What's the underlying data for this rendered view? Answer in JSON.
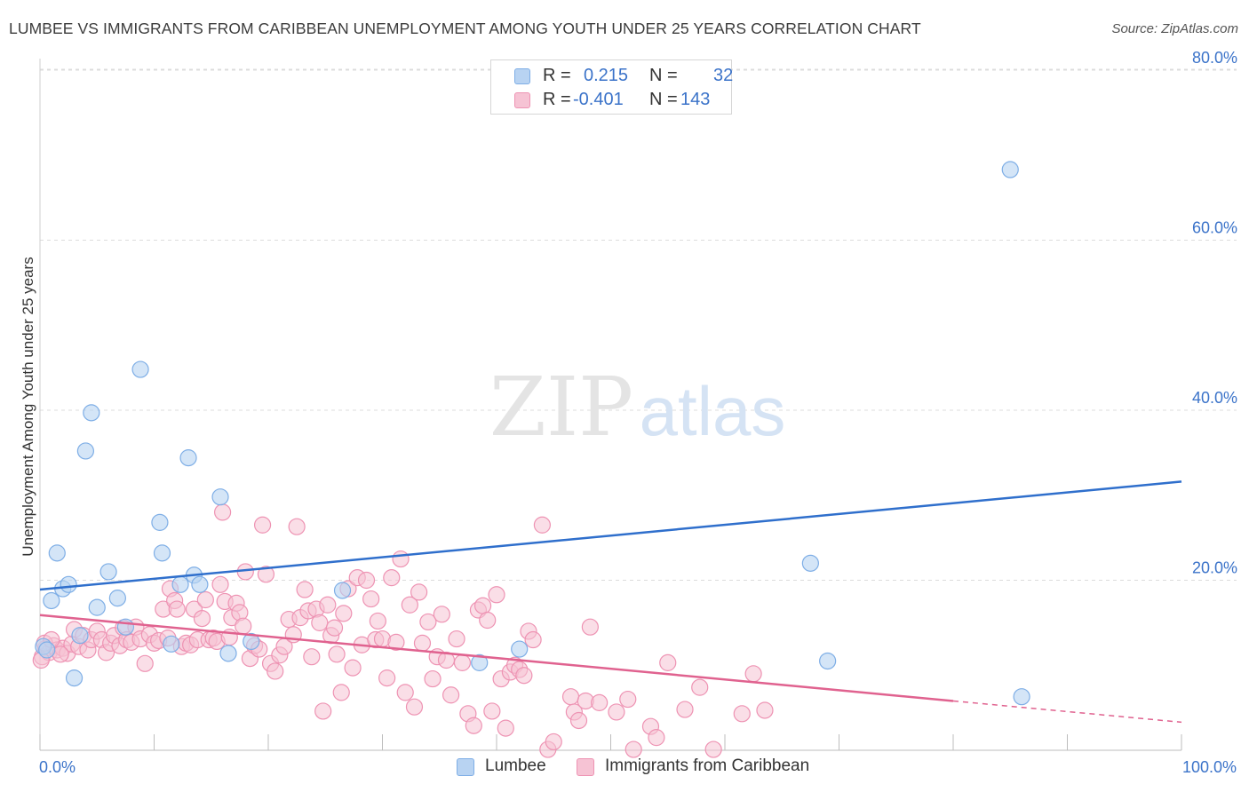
{
  "title": "LUMBEE VS IMMIGRANTS FROM CARIBBEAN UNEMPLOYMENT AMONG YOUTH UNDER 25 YEARS CORRELATION CHART",
  "source": "Source: ZipAtlas.com",
  "watermark": {
    "zip": "ZIP",
    "atlas": "atlas"
  },
  "legend_top": {
    "rows": [
      {
        "r_label": "R =",
        "r_value": "0.215",
        "n_label": "N =",
        "n_value": "32"
      },
      {
        "r_label": "R =",
        "r_value": "-0.401",
        "n_label": "N =",
        "n_value": "143"
      }
    ]
  },
  "colors": {
    "lumbee_fill": "#b8d3f2",
    "lumbee_stroke": "#7eaee6",
    "lumbee_line": "#2f6fcc",
    "carib_fill": "#f6c3d4",
    "carib_stroke": "#ee93b3",
    "carib_line": "#e0628f",
    "tick_label": "#3b73c9",
    "grid": "#dcdcdc"
  },
  "chart_data": {
    "type": "scatter",
    "title": "LUMBEE VS IMMIGRANTS FROM CARIBBEAN UNEMPLOYMENT AMONG YOUTH UNDER 25 YEARS CORRELATION CHART",
    "xlabel": "",
    "ylabel": "Unemployment Among Youth under 25 years",
    "xlim": [
      0,
      100
    ],
    "ylim": [
      0,
      80
    ],
    "x_tick_labels": [
      "0.0%",
      "100.0%"
    ],
    "y_ticks": [
      20,
      40,
      60,
      80
    ],
    "y_tick_labels": [
      "20.0%",
      "40.0%",
      "60.0%",
      "80.0%"
    ],
    "grid": "horizontal dashed",
    "legend_position": "bottom",
    "series": [
      {
        "name": "Lumbee",
        "r": 0.215,
        "n": 32,
        "trend": {
          "x": [
            0,
            100
          ],
          "y": [
            18.9,
            31.6
          ]
        },
        "points": [
          [
            0.3,
            12.2
          ],
          [
            1.0,
            17.6
          ],
          [
            1.5,
            23.2
          ],
          [
            2.0,
            19.0
          ],
          [
            2.5,
            19.5
          ],
          [
            3.0,
            8.5
          ],
          [
            3.5,
            13.5
          ],
          [
            4.0,
            35.2
          ],
          [
            4.5,
            39.7
          ],
          [
            5.0,
            16.8
          ],
          [
            6.0,
            21.0
          ],
          [
            6.8,
            17.9
          ],
          [
            7.5,
            14.5
          ],
          [
            8.8,
            44.8
          ],
          [
            10.5,
            26.8
          ],
          [
            10.7,
            23.2
          ],
          [
            11.5,
            12.5
          ],
          [
            12.3,
            19.5
          ],
          [
            13.0,
            34.4
          ],
          [
            13.5,
            20.6
          ],
          [
            14.0,
            19.5
          ],
          [
            15.8,
            29.8
          ],
          [
            16.5,
            11.4
          ],
          [
            18.5,
            12.8
          ],
          [
            26.5,
            18.8
          ],
          [
            38.5,
            10.3
          ],
          [
            42.0,
            11.9
          ],
          [
            67.5,
            22.0
          ],
          [
            69.0,
            10.5
          ],
          [
            85.0,
            68.3
          ],
          [
            86.0,
            6.3
          ],
          [
            0.6,
            11.8
          ]
        ]
      },
      {
        "name": "Immigrants from Caribbean",
        "r": -0.401,
        "n": 143,
        "trend": {
          "x": [
            0,
            80
          ],
          "y": [
            15.9,
            5.8
          ]
        },
        "trend_dashed": {
          "x": [
            80,
            100
          ],
          "y": [
            5.8,
            3.3
          ]
        },
        "points": [
          [
            0.2,
            11.0
          ],
          [
            0.5,
            12.0
          ],
          [
            0.8,
            11.5
          ],
          [
            1.2,
            12.3
          ],
          [
            1.5,
            11.8
          ],
          [
            2.0,
            12.0
          ],
          [
            2.4,
            11.4
          ],
          [
            2.8,
            12.5
          ],
          [
            3.0,
            14.2
          ],
          [
            3.4,
            12.2
          ],
          [
            3.8,
            13.5
          ],
          [
            4.2,
            11.8
          ],
          [
            4.5,
            13.0
          ],
          [
            5.0,
            14.0
          ],
          [
            5.4,
            13.0
          ],
          [
            5.8,
            11.5
          ],
          [
            6.2,
            12.6
          ],
          [
            6.5,
            13.5
          ],
          [
            7.0,
            12.3
          ],
          [
            7.3,
            14.4
          ],
          [
            7.6,
            13.0
          ],
          [
            8.0,
            12.7
          ],
          [
            8.4,
            14.5
          ],
          [
            8.8,
            13.1
          ],
          [
            9.2,
            10.2
          ],
          [
            9.6,
            13.6
          ],
          [
            10.0,
            12.6
          ],
          [
            10.4,
            12.9
          ],
          [
            10.8,
            16.6
          ],
          [
            11.2,
            13.2
          ],
          [
            11.4,
            19.0
          ],
          [
            11.8,
            17.6
          ],
          [
            12.0,
            16.6
          ],
          [
            12.4,
            12.2
          ],
          [
            12.8,
            12.6
          ],
          [
            13.2,
            12.4
          ],
          [
            13.5,
            16.6
          ],
          [
            13.8,
            13.0
          ],
          [
            14.2,
            15.5
          ],
          [
            14.5,
            17.7
          ],
          [
            14.8,
            13.0
          ],
          [
            15.2,
            13.2
          ],
          [
            15.5,
            12.8
          ],
          [
            15.8,
            19.5
          ],
          [
            16.0,
            28.0
          ],
          [
            16.2,
            17.5
          ],
          [
            16.6,
            13.3
          ],
          [
            16.8,
            15.6
          ],
          [
            17.2,
            17.3
          ],
          [
            17.5,
            16.2
          ],
          [
            17.8,
            14.6
          ],
          [
            18.0,
            21.0
          ],
          [
            18.4,
            10.8
          ],
          [
            18.8,
            12.3
          ],
          [
            19.2,
            11.9
          ],
          [
            19.5,
            26.5
          ],
          [
            19.8,
            20.7
          ],
          [
            20.2,
            10.2
          ],
          [
            20.6,
            9.3
          ],
          [
            21.0,
            11.2
          ],
          [
            21.4,
            12.2
          ],
          [
            21.8,
            15.4
          ],
          [
            22.2,
            13.6
          ],
          [
            22.5,
            26.3
          ],
          [
            22.8,
            15.6
          ],
          [
            23.2,
            18.9
          ],
          [
            23.5,
            16.4
          ],
          [
            23.8,
            11.0
          ],
          [
            24.2,
            16.6
          ],
          [
            24.5,
            15.0
          ],
          [
            24.8,
            4.6
          ],
          [
            25.2,
            17.1
          ],
          [
            25.5,
            13.5
          ],
          [
            25.8,
            14.4
          ],
          [
            26.0,
            11.3
          ],
          [
            26.4,
            6.8
          ],
          [
            26.6,
            16.1
          ],
          [
            27.0,
            19.0
          ],
          [
            27.4,
            9.7
          ],
          [
            27.8,
            20.3
          ],
          [
            28.2,
            12.4
          ],
          [
            28.6,
            20.0
          ],
          [
            29.0,
            17.8
          ],
          [
            29.4,
            13.0
          ],
          [
            29.6,
            15.2
          ],
          [
            30.0,
            13.1
          ],
          [
            30.4,
            8.5
          ],
          [
            30.8,
            20.3
          ],
          [
            31.2,
            12.7
          ],
          [
            31.6,
            22.5
          ],
          [
            32.0,
            6.8
          ],
          [
            32.4,
            17.1
          ],
          [
            32.8,
            5.1
          ],
          [
            33.2,
            18.6
          ],
          [
            33.5,
            12.6
          ],
          [
            34.0,
            15.1
          ],
          [
            34.4,
            8.4
          ],
          [
            34.8,
            11.0
          ],
          [
            35.2,
            16.0
          ],
          [
            35.6,
            10.6
          ],
          [
            36.0,
            6.5
          ],
          [
            36.5,
            13.1
          ],
          [
            37.0,
            10.3
          ],
          [
            37.5,
            4.3
          ],
          [
            38.0,
            2.9
          ],
          [
            38.4,
            16.5
          ],
          [
            38.8,
            17.0
          ],
          [
            39.2,
            15.3
          ],
          [
            39.6,
            4.6
          ],
          [
            40.0,
            18.3
          ],
          [
            40.4,
            8.4
          ],
          [
            40.8,
            2.6
          ],
          [
            41.2,
            9.2
          ],
          [
            41.6,
            10.0
          ],
          [
            42.0,
            9.5
          ],
          [
            42.4,
            8.8
          ],
          [
            42.8,
            14.0
          ],
          [
            43.2,
            13.0
          ],
          [
            44.0,
            26.5
          ],
          [
            44.5,
            0.1
          ],
          [
            45.0,
            1.0
          ],
          [
            46.5,
            6.3
          ],
          [
            46.8,
            4.5
          ],
          [
            47.2,
            3.5
          ],
          [
            47.8,
            5.8
          ],
          [
            48.2,
            14.5
          ],
          [
            49.0,
            5.6
          ],
          [
            50.5,
            4.5
          ],
          [
            51.5,
            6.0
          ],
          [
            52.0,
            0.1
          ],
          [
            53.5,
            2.8
          ],
          [
            54.0,
            1.5
          ],
          [
            55.0,
            10.3
          ],
          [
            56.5,
            4.8
          ],
          [
            57.8,
            7.4
          ],
          [
            59.0,
            0.1
          ],
          [
            61.5,
            4.3
          ],
          [
            62.5,
            9.0
          ],
          [
            63.5,
            4.7
          ],
          [
            0.1,
            10.6
          ],
          [
            0.4,
            12.6
          ],
          [
            1.0,
            13.0
          ],
          [
            1.8,
            11.3
          ]
        ]
      }
    ]
  }
}
